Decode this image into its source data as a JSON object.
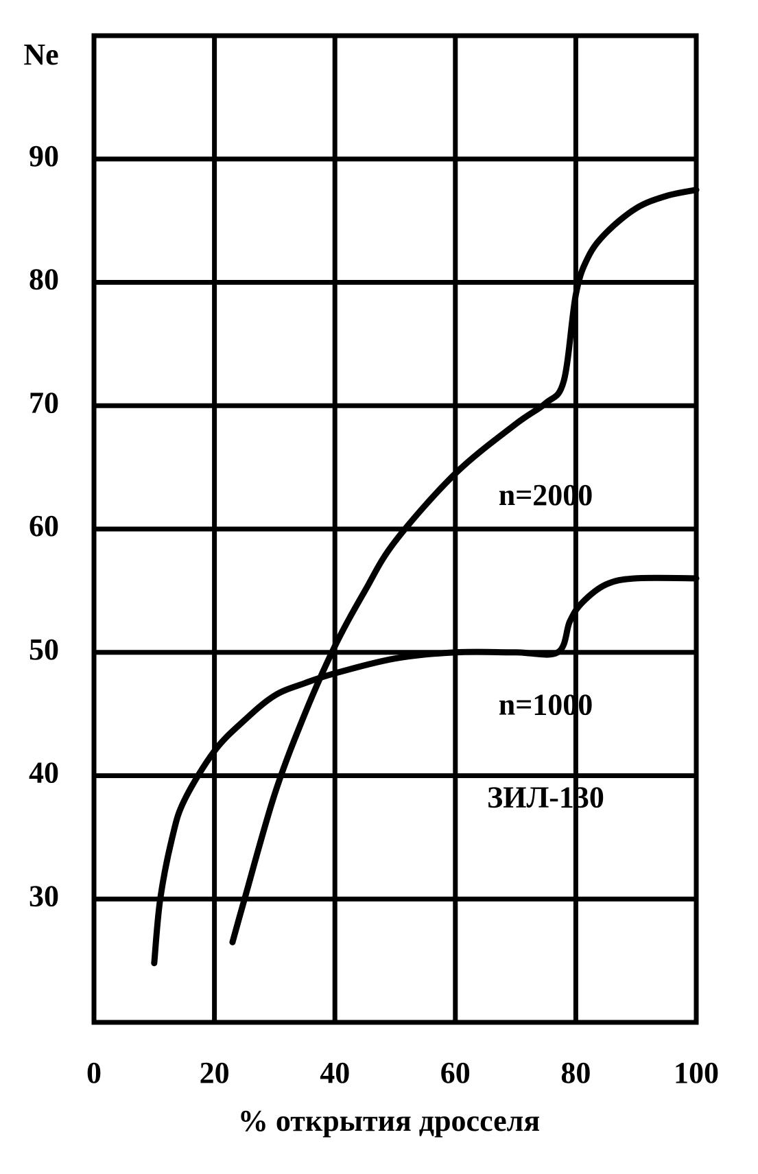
{
  "chart_data": {
    "type": "line",
    "y_label": "Ne",
    "x_label": "% открытия дросселя",
    "xlim": [
      0,
      100
    ],
    "xticks": [
      0,
      20,
      40,
      60,
      80,
      100
    ],
    "ylim": [
      20,
      100
    ],
    "yticks": [
      30,
      40,
      50,
      60,
      70,
      80,
      90
    ],
    "grid": true,
    "annotations": [
      "ЗИЛ-130"
    ],
    "series": [
      {
        "name": "n=2000",
        "color": "#000000",
        "x": [
          23,
          25,
          30,
          35,
          40,
          45,
          50,
          60,
          70,
          75,
          78,
          80,
          82,
          85,
          90,
          95,
          100
        ],
        "values": [
          26.5,
          30,
          38.5,
          45,
          50.5,
          55,
          59,
          64.5,
          68.5,
          70.2,
          72,
          79,
          82,
          84,
          86,
          87,
          87.5
        ]
      },
      {
        "name": "n=1000",
        "color": "#000000",
        "x": [
          10,
          11,
          13,
          15,
          20,
          25,
          30,
          35,
          40,
          50,
          60,
          70,
          77,
          79,
          81,
          85,
          90,
          100
        ],
        "values": [
          24.8,
          30,
          35,
          38,
          42,
          44.5,
          46.5,
          47.5,
          48.3,
          49.5,
          50,
          50,
          50,
          52.5,
          54,
          55.5,
          56,
          56
        ]
      }
    ]
  }
}
